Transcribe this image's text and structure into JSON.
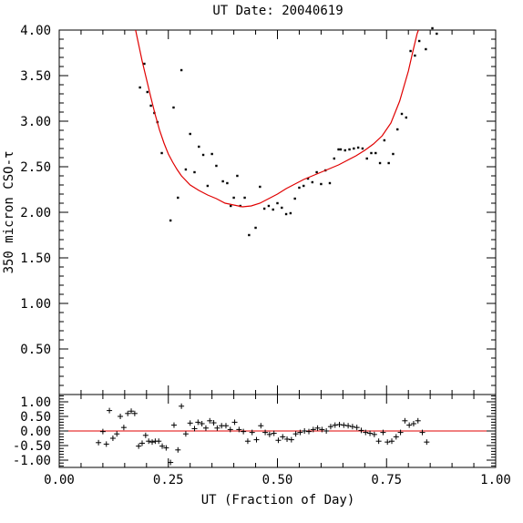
{
  "chart_data": [
    {
      "type": "scatter",
      "title": "UT Date: 20040619",
      "ylabel": "350 micron CSO-τ",
      "xlim": [
        0,
        1
      ],
      "ylim": [
        0,
        4
      ],
      "yticks": [
        "0.50",
        "1.00",
        "1.50",
        "2.00",
        "2.50",
        "3.00",
        "3.50",
        "4.00"
      ],
      "grid": false,
      "series": [
        {
          "type": "scatter",
          "points": [
            [
              0.185,
              3.37
            ],
            [
              0.195,
              3.63
            ],
            [
              0.202,
              3.32
            ],
            [
              0.21,
              3.17
            ],
            [
              0.218,
              3.09
            ],
            [
              0.225,
              2.99
            ],
            [
              0.235,
              2.65
            ],
            [
              0.255,
              1.91
            ],
            [
              0.262,
              3.15
            ],
            [
              0.272,
              2.16
            ],
            [
              0.28,
              3.56
            ],
            [
              0.29,
              2.47
            ],
            [
              0.3,
              2.86
            ],
            [
              0.31,
              2.44
            ],
            [
              0.32,
              2.72
            ],
            [
              0.33,
              2.63
            ],
            [
              0.34,
              2.29
            ],
            [
              0.35,
              2.64
            ],
            [
              0.36,
              2.51
            ],
            [
              0.375,
              2.34
            ],
            [
              0.385,
              2.32
            ],
            [
              0.393,
              2.07
            ],
            [
              0.4,
              2.16
            ],
            [
              0.408,
              2.4
            ],
            [
              0.415,
              2.07
            ],
            [
              0.425,
              2.16
            ],
            [
              0.435,
              1.75
            ],
            [
              0.45,
              1.83
            ],
            [
              0.46,
              2.28
            ],
            [
              0.47,
              2.04
            ],
            [
              0.48,
              2.07
            ],
            [
              0.49,
              2.03
            ],
            [
              0.5,
              2.1
            ],
            [
              0.51,
              2.05
            ],
            [
              0.52,
              1.98
            ],
            [
              0.53,
              1.99
            ],
            [
              0.54,
              2.15
            ],
            [
              0.55,
              2.27
            ],
            [
              0.56,
              2.29
            ],
            [
              0.57,
              2.37
            ],
            [
              0.58,
              2.33
            ],
            [
              0.59,
              2.44
            ],
            [
              0.6,
              2.31
            ],
            [
              0.61,
              2.46
            ],
            [
              0.62,
              2.32
            ],
            [
              0.63,
              2.59
            ],
            [
              0.64,
              2.69
            ],
            [
              0.645,
              2.69
            ],
            [
              0.655,
              2.68
            ],
            [
              0.665,
              2.69
            ],
            [
              0.675,
              2.7
            ],
            [
              0.685,
              2.71
            ],
            [
              0.695,
              2.7
            ],
            [
              0.705,
              2.59
            ],
            [
              0.715,
              2.65
            ],
            [
              0.725,
              2.65
            ],
            [
              0.735,
              2.54
            ],
            [
              0.745,
              2.79
            ],
            [
              0.755,
              2.54
            ],
            [
              0.765,
              2.64
            ],
            [
              0.775,
              2.91
            ],
            [
              0.785,
              3.08
            ],
            [
              0.795,
              3.04
            ],
            [
              0.805,
              3.77
            ],
            [
              0.815,
              3.72
            ],
            [
              0.825,
              3.88
            ],
            [
              0.84,
              3.79
            ],
            [
              0.855,
              4.02
            ],
            [
              0.865,
              3.96
            ]
          ]
        },
        {
          "type": "line",
          "color": "#e00000",
          "points": [
            [
              0.175,
              4.0
            ],
            [
              0.19,
              3.66
            ],
            [
              0.2,
              3.46
            ],
            [
              0.21,
              3.26
            ],
            [
              0.22,
              3.07
            ],
            [
              0.23,
              2.9
            ],
            [
              0.24,
              2.76
            ],
            [
              0.25,
              2.64
            ],
            [
              0.26,
              2.55
            ],
            [
              0.27,
              2.47
            ],
            [
              0.28,
              2.4
            ],
            [
              0.3,
              2.3
            ],
            [
              0.32,
              2.24
            ],
            [
              0.34,
              2.19
            ],
            [
              0.36,
              2.15
            ],
            [
              0.38,
              2.1
            ],
            [
              0.4,
              2.08
            ],
            [
              0.42,
              2.06
            ],
            [
              0.44,
              2.07
            ],
            [
              0.46,
              2.1
            ],
            [
              0.48,
              2.15
            ],
            [
              0.5,
              2.2
            ],
            [
              0.52,
              2.26
            ],
            [
              0.54,
              2.31
            ],
            [
              0.56,
              2.36
            ],
            [
              0.58,
              2.4
            ],
            [
              0.6,
              2.44
            ],
            [
              0.62,
              2.48
            ],
            [
              0.64,
              2.52
            ],
            [
              0.66,
              2.57
            ],
            [
              0.68,
              2.62
            ],
            [
              0.7,
              2.68
            ],
            [
              0.72,
              2.75
            ],
            [
              0.74,
              2.84
            ],
            [
              0.76,
              2.98
            ],
            [
              0.78,
              3.22
            ],
            [
              0.8,
              3.55
            ],
            [
              0.81,
              3.76
            ],
            [
              0.82,
              3.96
            ],
            [
              0.823,
              4.0
            ]
          ]
        }
      ]
    },
    {
      "type": "scatter",
      "xlabel": "UT (Fraction of Day)",
      "xlim": [
        0,
        1
      ],
      "ylim": [
        -1.25,
        1.25
      ],
      "xticks": [
        "0.00",
        "0.25",
        "0.50",
        "0.75",
        "1.00"
      ],
      "yticks": [
        "1.00",
        "0.50",
        "0.00",
        "-0.50",
        "-1.00"
      ],
      "zero_line": {
        "y": 0,
        "color": "#e00000"
      },
      "series": [
        {
          "type": "scatter",
          "marker": "+",
          "points": [
            [
              0.09,
              -0.4
            ],
            [
              0.1,
              -0.02
            ],
            [
              0.108,
              -0.45
            ],
            [
              0.115,
              0.7
            ],
            [
              0.123,
              -0.25
            ],
            [
              0.132,
              -0.1
            ],
            [
              0.14,
              0.5
            ],
            [
              0.148,
              0.12
            ],
            [
              0.157,
              0.6
            ],
            [
              0.165,
              0.68
            ],
            [
              0.173,
              0.6
            ],
            [
              0.182,
              -0.52
            ],
            [
              0.19,
              -0.42
            ],
            [
              0.198,
              -0.15
            ],
            [
              0.205,
              -0.35
            ],
            [
              0.213,
              -0.38
            ],
            [
              0.22,
              -0.35
            ],
            [
              0.228,
              -0.35
            ],
            [
              0.236,
              -0.52
            ],
            [
              0.245,
              -0.58
            ],
            [
              0.255,
              -1.08
            ],
            [
              0.263,
              0.2
            ],
            [
              0.272,
              -0.65
            ],
            [
              0.28,
              0.85
            ],
            [
              0.29,
              -0.1
            ],
            [
              0.3,
              0.27
            ],
            [
              0.31,
              0.08
            ],
            [
              0.318,
              0.3
            ],
            [
              0.327,
              0.25
            ],
            [
              0.336,
              0.1
            ],
            [
              0.345,
              0.35
            ],
            [
              0.354,
              0.28
            ],
            [
              0.362,
              0.1
            ],
            [
              0.372,
              0.18
            ],
            [
              0.382,
              0.18
            ],
            [
              0.392,
              0.05
            ],
            [
              0.402,
              0.3
            ],
            [
              0.412,
              0.05
            ],
            [
              0.422,
              -0.02
            ],
            [
              0.432,
              -0.35
            ],
            [
              0.442,
              -0.05
            ],
            [
              0.452,
              -0.3
            ],
            [
              0.462,
              0.18
            ],
            [
              0.472,
              -0.05
            ],
            [
              0.482,
              -0.12
            ],
            [
              0.492,
              -0.08
            ],
            [
              0.502,
              -0.32
            ],
            [
              0.512,
              -0.2
            ],
            [
              0.522,
              -0.28
            ],
            [
              0.532,
              -0.3
            ],
            [
              0.542,
              -0.1
            ],
            [
              0.552,
              -0.05
            ],
            [
              0.562,
              0.0
            ],
            [
              0.572,
              -0.02
            ],
            [
              0.582,
              0.05
            ],
            [
              0.592,
              0.1
            ],
            [
              0.602,
              0.05
            ],
            [
              0.612,
              0.0
            ],
            [
              0.622,
              0.15
            ],
            [
              0.632,
              0.2
            ],
            [
              0.642,
              0.22
            ],
            [
              0.652,
              0.2
            ],
            [
              0.662,
              0.18
            ],
            [
              0.672,
              0.15
            ],
            [
              0.682,
              0.12
            ],
            [
              0.692,
              0.02
            ],
            [
              0.702,
              -0.05
            ],
            [
              0.712,
              -0.08
            ],
            [
              0.722,
              -0.12
            ],
            [
              0.732,
              -0.35
            ],
            [
              0.742,
              -0.05
            ],
            [
              0.752,
              -0.38
            ],
            [
              0.762,
              -0.35
            ],
            [
              0.772,
              -0.2
            ],
            [
              0.782,
              -0.05
            ],
            [
              0.792,
              0.35
            ],
            [
              0.802,
              0.2
            ],
            [
              0.812,
              0.25
            ],
            [
              0.822,
              0.35
            ],
            [
              0.832,
              -0.05
            ],
            [
              0.842,
              -0.38
            ]
          ]
        }
      ]
    }
  ]
}
